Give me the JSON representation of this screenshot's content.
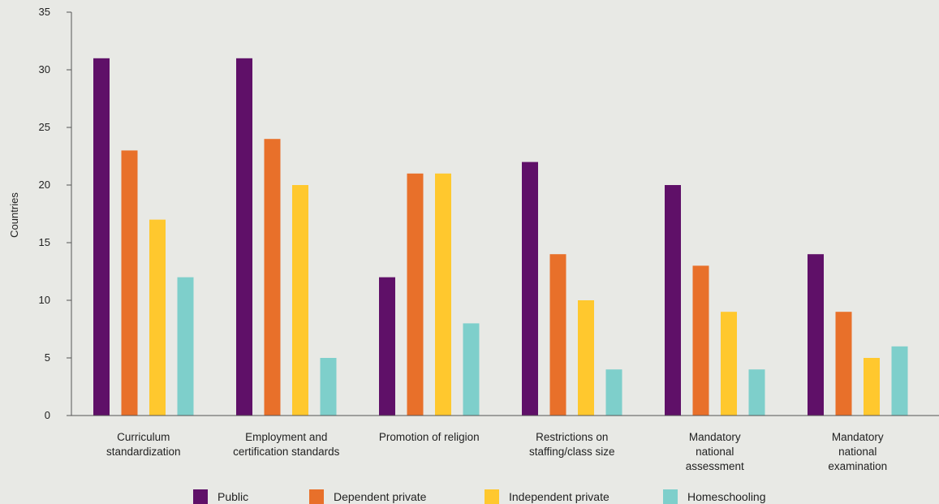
{
  "chart_data": {
    "type": "bar",
    "title": "",
    "xlabel": "",
    "ylabel": "Countries",
    "ylim": [
      0,
      35
    ],
    "yticks": [
      0,
      5,
      10,
      15,
      20,
      25,
      30,
      35
    ],
    "grid": false,
    "legend_position": "bottom",
    "categories": [
      [
        "Curriculum",
        "standardization"
      ],
      [
        "Employment and",
        "certification standards"
      ],
      [
        "Promotion of religion"
      ],
      [
        "Restrictions on",
        "staffing/class size"
      ],
      [
        "Mandatory",
        "national",
        "assessment"
      ],
      [
        "Mandatory",
        "national",
        "examination"
      ]
    ],
    "series": [
      {
        "name": "Public",
        "color": "#5f1068",
        "values": [
          31,
          31,
          12,
          22,
          20,
          14
        ]
      },
      {
        "name": "Dependent private",
        "color": "#e8702a",
        "values": [
          23,
          24,
          21,
          14,
          13,
          9
        ]
      },
      {
        "name": "Independent private",
        "color": "#ffc82e",
        "values": [
          17,
          20,
          21,
          10,
          9,
          5
        ]
      },
      {
        "name": "Homeschooling",
        "color": "#7ecfcb",
        "values": [
          12,
          5,
          8,
          4,
          4,
          6
        ]
      }
    ]
  }
}
